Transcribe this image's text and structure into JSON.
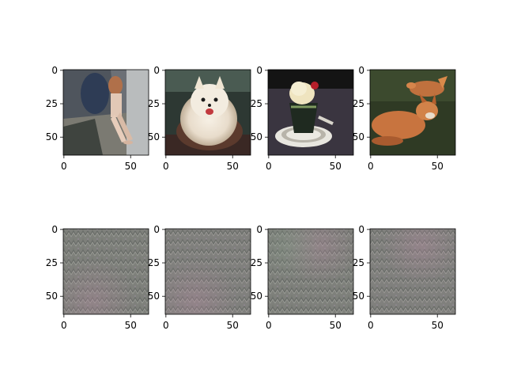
{
  "chart_data": [
    {
      "type": "image",
      "row": 0,
      "col": 0,
      "subject": "person sitting against a wall",
      "xticks": [
        0,
        50
      ],
      "yticks": [
        0,
        25,
        50
      ],
      "xlim": [
        -0.5,
        63.5
      ],
      "ylim": [
        63.5,
        -0.5
      ]
    },
    {
      "type": "image",
      "row": 0,
      "col": 1,
      "subject": "white pomeranian dog",
      "xticks": [
        0,
        50
      ],
      "yticks": [
        0,
        25,
        50
      ],
      "xlim": [
        -0.5,
        63.5
      ],
      "ylim": [
        63.5,
        -0.5
      ]
    },
    {
      "type": "image",
      "row": 0,
      "col": 2,
      "subject": "ice cream dessert in a glass",
      "xticks": [
        0,
        50
      ],
      "yticks": [
        0,
        25,
        50
      ],
      "xlim": [
        -0.5,
        63.5
      ],
      "ylim": [
        63.5,
        -0.5
      ]
    },
    {
      "type": "image",
      "row": 0,
      "col": 3,
      "subject": "two foxes on grass",
      "xticks": [
        0,
        50
      ],
      "yticks": [
        0,
        25,
        50
      ],
      "xlim": [
        -0.5,
        63.5
      ],
      "ylim": [
        63.5,
        -0.5
      ]
    },
    {
      "type": "image",
      "row": 1,
      "col": 0,
      "subject": "grey noise pattern",
      "xticks": [
        0,
        50
      ],
      "yticks": [
        0,
        25,
        50
      ],
      "xlim": [
        -0.5,
        63.5
      ],
      "ylim": [
        63.5,
        -0.5
      ]
    },
    {
      "type": "image",
      "row": 1,
      "col": 1,
      "subject": "grey noise pattern",
      "xticks": [
        0,
        50
      ],
      "yticks": [
        0,
        25,
        50
      ],
      "xlim": [
        -0.5,
        63.5
      ],
      "ylim": [
        63.5,
        -0.5
      ]
    },
    {
      "type": "image",
      "row": 1,
      "col": 2,
      "subject": "grey noise pattern",
      "xticks": [
        0,
        50
      ],
      "yticks": [
        0,
        25,
        50
      ],
      "xlim": [
        -0.5,
        63.5
      ],
      "ylim": [
        63.5,
        -0.5
      ]
    },
    {
      "type": "image",
      "row": 1,
      "col": 3,
      "subject": "grey noise pattern",
      "xticks": [
        0,
        50
      ],
      "yticks": [
        0,
        25,
        50
      ],
      "xlim": [
        -0.5,
        63.5
      ],
      "ylim": [
        63.5,
        -0.5
      ]
    }
  ],
  "colors": {
    "axis": "#000000",
    "noise_base": "#7d7f7a",
    "wall": "#5d6168",
    "dog_bg": "#2f3a36",
    "dessert_bg": "#141414",
    "fox_bg": "#2e3a22",
    "fox": "#c9733d"
  }
}
